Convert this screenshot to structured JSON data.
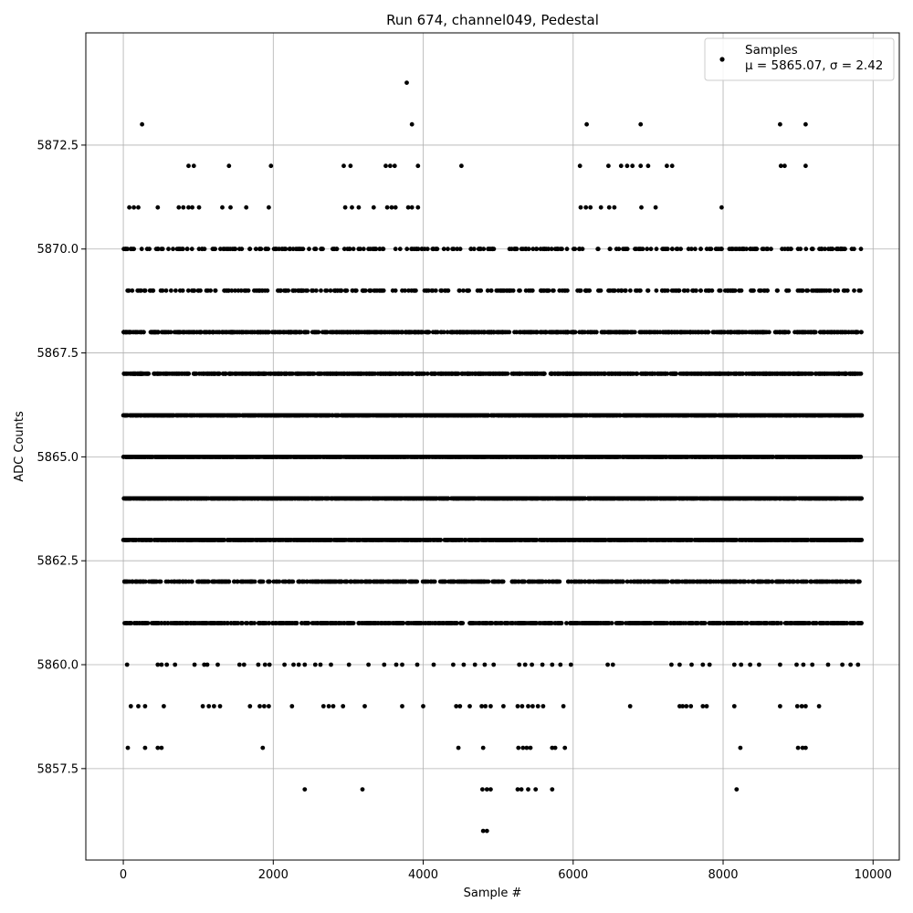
{
  "chart_data": {
    "type": "scatter",
    "title": "Run 674, channel049, Pedestal",
    "xlabel": "Sample #",
    "ylabel": "ADC Counts",
    "xlim": [
      -500,
      10350
    ],
    "ylim": [
      5855.3,
      5875.2
    ],
    "xticks": [
      0,
      2000,
      4000,
      6000,
      8000,
      10000
    ],
    "xtick_labels": [
      "0",
      "2000",
      "4000",
      "6000",
      "8000",
      "10000"
    ],
    "yticks": [
      5857.5,
      5860.0,
      5862.5,
      5865.0,
      5867.5,
      5870.0,
      5872.5
    ],
    "ytick_labels": [
      "5857.5",
      "5860.0",
      "5862.5",
      "5865.0",
      "5867.5",
      "5870.0",
      "5872.5"
    ],
    "grid": true,
    "legend_position": "top-right",
    "marker_color": "#000000",
    "series": [
      {
        "name": "Samples",
        "stats_label": "μ = 5865.07, σ = 2.42",
        "mu": 5865.07,
        "sigma": 2.42,
        "n_samples": 9850,
        "levels": [
          {
            "y": 5856,
            "x": [
              4800,
              4850
            ]
          },
          {
            "y": 5857,
            "x": [
              2420,
              3190,
              4790,
              4850,
              4900,
              5260,
              5310,
              5400,
              5500,
              5720,
              8180
            ]
          },
          {
            "y": 5858,
            "x": [
              60,
              290,
              460,
              510,
              1860,
              4470,
              4800,
              5270,
              5330,
              5380,
              5430,
              5720,
              5760,
              5890,
              8230,
              9000,
              9060,
              9100
            ]
          },
          {
            "y": 5859,
            "x": [
              100,
              200,
              290,
              540,
              1060,
              1140,
              1210,
              1290,
              1690,
              1820,
              1880,
              1940,
              2250,
              2670,
              2740,
              2800,
              2930,
              3220,
              3720,
              4000,
              4440,
              4490,
              4620,
              4780,
              4830,
              4900,
              5070,
              5260,
              5320,
              5400,
              5460,
              5530,
              5600,
              5870,
              6760,
              7420,
              7460,
              7510,
              7570,
              7730,
              7780,
              8150,
              8760,
              8990,
              9050,
              9100,
              9280
            ]
          },
          {
            "y": 5860,
            "x": [
              50,
              460,
              510,
              580,
              690,
              950,
              1080,
              1120,
              1260,
              1550,
              1610,
              1800,
              1890,
              1950,
              2150,
              2270,
              2340,
              2420,
              2560,
              2630,
              2770,
              3010,
              3270,
              3480,
              3640,
              3720,
              3920,
              4140,
              4400,
              4540,
              4690,
              4820,
              4940,
              5280,
              5360,
              5450,
              5590,
              5720,
              5830,
              5970,
              6460,
              6530,
              7310,
              7420,
              7580,
              7730,
              7820,
              8150,
              8240,
              8360,
              8480,
              8760,
              8980,
              9070,
              9190,
              9400,
              9590,
              9700,
              9800
            ]
          }
        ],
        "dense_levels": [
          {
            "y": 5861,
            "count": 780
          },
          {
            "y": 5862,
            "count": 620
          },
          {
            "y": 5863,
            "count": 1580
          },
          {
            "y": 5864,
            "count": 1650
          },
          {
            "y": 5865,
            "count": 1650
          },
          {
            "y": 5866,
            "count": 1600
          },
          {
            "y": 5867,
            "count": 1050
          },
          {
            "y": 5868,
            "count": 900
          },
          {
            "y": 5869,
            "count": 330
          },
          {
            "y": 5870,
            "count": 300
          }
        ],
        "upper_levels": [
          {
            "y": 5871,
            "x": [
              80,
              140,
              200,
              460,
              740,
              800,
              870,
              920,
              1010,
              1320,
              1430,
              1640,
              1940,
              2960,
              3050,
              3140,
              3340,
              3520,
              3580,
              3630,
              3800,
              3850,
              3930,
              6100,
              6170,
              6230,
              6370,
              6480,
              6550,
              6910,
              7100,
              7980
            ]
          },
          {
            "y": 5872,
            "x": [
              870,
              940,
              1410,
              1970,
              2940,
              3030,
              3500,
              3560,
              3620,
              3930,
              4510,
              6090,
              6470,
              6640,
              6720,
              6790,
              6900,
              7000,
              7250,
              7320,
              8770,
              8820,
              9100
            ]
          },
          {
            "y": 5873,
            "x": [
              250,
              3850,
              6180,
              6900,
              8760,
              9100
            ]
          },
          {
            "y": 5874,
            "x": [
              3780
            ]
          }
        ]
      }
    ]
  }
}
